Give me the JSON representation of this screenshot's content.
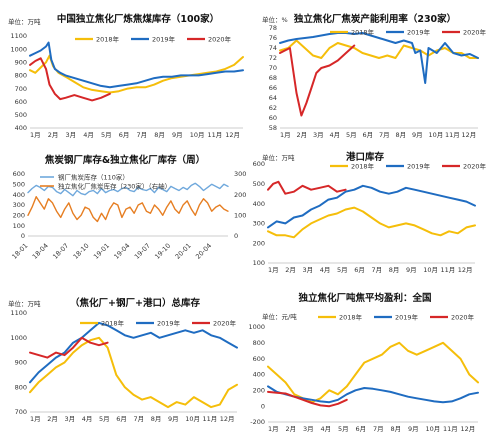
{
  "chart_data": [
    {
      "type": "line",
      "title": "中国独立焦化厂炼焦煤库存（100家）",
      "unit": "万吨",
      "ylim": [
        400,
        1100
      ],
      "yticks": [
        400,
        500,
        600,
        700,
        800,
        900,
        1000,
        1100
      ],
      "xticks": [
        "1月",
        "2月",
        "3月",
        "4月",
        "5月",
        "6月",
        "7月",
        "8月",
        "9月",
        "10月",
        "11月",
        "12月"
      ],
      "xrange": [
        1,
        13
      ],
      "legend_position": "top",
      "grid": false,
      "series": [
        {
          "name": "2018年",
          "color": "#F5BE0A",
          "x": [
            1,
            1.3,
            1.6,
            1.9,
            2.1,
            2.3,
            2.6,
            3,
            3.5,
            4,
            4.5,
            5,
            5.5,
            6,
            6.5,
            7,
            7.5,
            8,
            8.5,
            9,
            9.5,
            10,
            10.5,
            11,
            11.5,
            12,
            12.5,
            13
          ],
          "y": [
            840,
            820,
            860,
            900,
            950,
            870,
            820,
            790,
            750,
            710,
            690,
            680,
            670,
            680,
            700,
            710,
            710,
            730,
            760,
            780,
            790,
            800,
            810,
            820,
            830,
            850,
            880,
            940
          ]
        },
        {
          "name": "2019年",
          "color": "#1F6CC1",
          "x": [
            1,
            1.3,
            1.6,
            1.9,
            2.05,
            2.2,
            2.4,
            2.7,
            3,
            3.5,
            4,
            4.5,
            5,
            5.5,
            6,
            6.5,
            7,
            7.5,
            8,
            8.5,
            9,
            9.5,
            10,
            10.5,
            11,
            11.5,
            12,
            12.5,
            13
          ],
          "y": [
            950,
            970,
            990,
            1020,
            1050,
            920,
            850,
            820,
            800,
            780,
            760,
            740,
            720,
            710,
            720,
            730,
            740,
            760,
            780,
            790,
            790,
            800,
            800,
            800,
            810,
            820,
            830,
            830,
            840
          ]
        },
        {
          "name": "2020年",
          "color": "#D62728",
          "x": [
            1,
            1.3,
            1.6,
            1.9,
            2.1,
            2.4,
            2.7,
            3,
            3.5,
            4,
            4.5,
            5,
            5.5
          ],
          "y": [
            880,
            910,
            930,
            850,
            730,
            660,
            620,
            630,
            650,
            630,
            610,
            630,
            660
          ]
        }
      ]
    },
    {
      "type": "line",
      "title": "独立焦化厂焦炭产能利用率（230家）",
      "unit": "%",
      "ylim": [
        58,
        78
      ],
      "yticks": [
        58,
        60,
        62,
        64,
        66,
        68,
        70,
        72,
        74,
        76,
        78
      ],
      "xticks": [
        "1月",
        "2月",
        "3月",
        "4月",
        "5月",
        "6月",
        "7月",
        "8月",
        "9月",
        "10月",
        "11月",
        "12月"
      ],
      "xrange": [
        1,
        13
      ],
      "legend_position": "top",
      "grid": false,
      "series": [
        {
          "name": "2018年",
          "color": "#F5BE0A",
          "x": [
            1,
            1.5,
            2,
            2.5,
            3,
            3.5,
            4,
            4.5,
            5,
            5.5,
            6,
            6.5,
            7,
            7.5,
            8,
            8.5,
            9,
            9.5,
            10,
            10.5,
            11,
            11.5,
            12,
            12.5,
            13
          ],
          "y": [
            73.5,
            74,
            75.5,
            74,
            72.5,
            72,
            74,
            75,
            74.5,
            74,
            73,
            72.5,
            72,
            72.5,
            72,
            74.5,
            74,
            73.5,
            72.5,
            73.5,
            74,
            73,
            73,
            72,
            72
          ]
        },
        {
          "name": "2019年",
          "color": "#1F6CC1",
          "x": [
            1,
            1.5,
            2,
            2.5,
            3,
            3.5,
            4,
            4.5,
            5,
            5.5,
            6,
            6.5,
            7,
            7.5,
            8,
            8.5,
            9,
            9.2,
            9.5,
            9.8,
            10,
            10.5,
            11,
            11.5,
            12,
            12.5,
            13
          ],
          "y": [
            75,
            75.5,
            75.8,
            76,
            76.2,
            76.5,
            76.8,
            77,
            77,
            76.8,
            77,
            76.5,
            76,
            75.5,
            75,
            75.5,
            75,
            73,
            73.5,
            67,
            74,
            73,
            75,
            73,
            72.5,
            72.8,
            72
          ]
        },
        {
          "name": "2020年",
          "color": "#D62728",
          "x": [
            1,
            1.3,
            1.6,
            2,
            2.3,
            2.6,
            2.9,
            3.2,
            3.5,
            4,
            4.5,
            5,
            5.5
          ],
          "y": [
            73,
            73.5,
            74,
            65,
            60.5,
            63,
            66,
            69,
            70,
            70.5,
            71.5,
            73,
            74.5
          ]
        }
      ]
    },
    {
      "type": "line",
      "title": "焦炭钢厂库存&独立焦化厂库存（周）",
      "unit": "",
      "ylim": [
        0,
        600
      ],
      "yticks": [
        0,
        100,
        200,
        300,
        400,
        500,
        600
      ],
      "y2lim": [
        0,
        300
      ],
      "y2ticks": [
        0,
        100,
        200,
        300
      ],
      "xticks": [
        "18-01",
        "18-04",
        "18-07",
        "18-10",
        "19-01",
        "19-04",
        "19-07",
        "19-10",
        "20-01",
        "20-04"
      ],
      "xrange": [
        0,
        9.8
      ],
      "legend_position": "top",
      "grid": false,
      "series": [
        {
          "name": "钢厂焦炭库存（110家）",
          "color": "#6FA8DC",
          "axis": "left",
          "x": [
            0,
            0.2,
            0.4,
            0.6,
            0.8,
            1,
            1.2,
            1.4,
            1.6,
            1.8,
            2,
            2.2,
            2.4,
            2.6,
            2.8,
            3,
            3.2,
            3.4,
            3.6,
            3.8,
            4,
            4.2,
            4.4,
            4.6,
            4.8,
            5,
            5.2,
            5.4,
            5.6,
            5.8,
            6,
            6.2,
            6.4,
            6.6,
            6.8,
            7,
            7.2,
            7.4,
            7.6,
            7.8,
            8,
            8.2,
            8.4,
            8.6,
            8.8,
            9,
            9.2,
            9.4,
            9.6,
            9.8
          ],
          "y": [
            420,
            460,
            490,
            470,
            440,
            480,
            470,
            430,
            410,
            450,
            420,
            390,
            440,
            410,
            400,
            430,
            440,
            410,
            460,
            420,
            440,
            450,
            430,
            460,
            470,
            440,
            430,
            470,
            450,
            440,
            460,
            420,
            470,
            450,
            430,
            480,
            460,
            440,
            470,
            450,
            490,
            510,
            480,
            440,
            470,
            500,
            480,
            460,
            500,
            480
          ]
        },
        {
          "name": "独立焦化厂焦炭库存（230家）（右轴）",
          "color": "#E67E22",
          "axis": "right",
          "x": [
            0,
            0.2,
            0.4,
            0.6,
            0.8,
            1,
            1.2,
            1.4,
            1.6,
            1.8,
            2,
            2.2,
            2.4,
            2.6,
            2.8,
            3,
            3.2,
            3.4,
            3.6,
            3.8,
            4,
            4.2,
            4.4,
            4.6,
            4.8,
            5,
            5.2,
            5.4,
            5.6,
            5.8,
            6,
            6.2,
            6.4,
            6.6,
            6.8,
            7,
            7.2,
            7.4,
            7.6,
            7.8,
            8,
            8.2,
            8.4,
            8.6,
            8.8,
            9,
            9.2,
            9.4,
            9.6,
            9.8
          ],
          "y": [
            100,
            140,
            190,
            160,
            130,
            180,
            160,
            120,
            90,
            130,
            160,
            110,
            80,
            100,
            140,
            130,
            90,
            70,
            110,
            80,
            130,
            160,
            150,
            90,
            130,
            140,
            110,
            150,
            160,
            120,
            110,
            150,
            130,
            100,
            140,
            170,
            130,
            110,
            150,
            170,
            130,
            100,
            150,
            180,
            160,
            120,
            140,
            150,
            130,
            120
          ]
        }
      ]
    },
    {
      "type": "line",
      "title": "港口库存",
      "unit": "万吨",
      "ylim": [
        100,
        600
      ],
      "yticks": [
        100,
        200,
        300,
        400,
        500,
        600
      ],
      "xticks": [
        "1月",
        "2月",
        "3月",
        "4月",
        "5月",
        "6月",
        "7月",
        "8月",
        "9月",
        "10月",
        "11月",
        "12月"
      ],
      "xrange": [
        1,
        13
      ],
      "legend_position": "top",
      "grid": false,
      "series": [
        {
          "name": "2018年",
          "color": "#F5BE0A",
          "x": [
            1,
            1.5,
            2,
            2.5,
            3,
            3.5,
            4,
            4.5,
            5,
            5.5,
            6,
            6.5,
            7,
            7.5,
            8,
            8.5,
            9,
            9.5,
            10,
            10.5,
            11,
            11.5,
            12,
            12.5,
            13
          ],
          "y": [
            260,
            240,
            240,
            230,
            270,
            300,
            320,
            340,
            350,
            370,
            380,
            360,
            330,
            300,
            280,
            290,
            300,
            290,
            270,
            250,
            240,
            260,
            250,
            280,
            290
          ]
        },
        {
          "name": "2019年",
          "color": "#1F6CC1",
          "x": [
            1,
            1.5,
            2,
            2.5,
            3,
            3.5,
            4,
            4.5,
            5,
            5.5,
            6,
            6.5,
            7,
            7.5,
            8,
            8.5,
            9,
            9.5,
            10,
            10.5,
            11,
            11.5,
            12,
            12.5,
            13
          ],
          "y": [
            280,
            310,
            300,
            330,
            340,
            370,
            390,
            420,
            430,
            460,
            470,
            490,
            480,
            460,
            450,
            460,
            480,
            470,
            460,
            450,
            440,
            430,
            420,
            410,
            390
          ]
        },
        {
          "name": "2020年",
          "color": "#D62728",
          "x": [
            1,
            1.3,
            1.6,
            2,
            2.5,
            3,
            3.5,
            4,
            4.5,
            5,
            5.5
          ],
          "y": [
            470,
            500,
            510,
            450,
            460,
            490,
            470,
            480,
            490,
            460,
            470
          ]
        }
      ]
    },
    {
      "type": "line",
      "title": "（焦化厂+钢厂+港口）总库存",
      "unit": "万吨",
      "ylim": [
        700,
        1100
      ],
      "yticks": [
        700,
        800,
        900,
        1000,
        1100
      ],
      "xticks": [
        "1月",
        "2月",
        "3月",
        "4月",
        "5月",
        "6月",
        "7月",
        "8月",
        "9月",
        "10月",
        "11月",
        "12月"
      ],
      "xrange": [
        1,
        13
      ],
      "legend_position": "top",
      "grid": false,
      "series": [
        {
          "name": "2018年",
          "color": "#F5BE0A",
          "x": [
            1,
            1.5,
            2,
            2.5,
            3,
            3.5,
            4,
            4.5,
            5,
            5.5,
            6,
            6.5,
            7,
            7.5,
            8,
            8.5,
            9,
            9.5,
            10,
            10.5,
            11,
            11.5,
            12,
            12.5,
            13
          ],
          "y": [
            780,
            820,
            850,
            880,
            900,
            940,
            970,
            990,
            1000,
            960,
            850,
            800,
            770,
            750,
            760,
            740,
            720,
            740,
            730,
            760,
            740,
            720,
            730,
            790,
            810
          ]
        },
        {
          "name": "2019年",
          "color": "#1F6CC1",
          "x": [
            1,
            1.5,
            2,
            2.5,
            3,
            3.5,
            4,
            4.5,
            5,
            5.5,
            6,
            6.5,
            7,
            7.5,
            8,
            8.5,
            9,
            9.5,
            10,
            10.5,
            11,
            11.5,
            12,
            12.5,
            13
          ],
          "y": [
            820,
            860,
            890,
            920,
            940,
            980,
            1000,
            1030,
            1060,
            1050,
            1030,
            1010,
            1000,
            1010,
            1020,
            1000,
            1010,
            1020,
            1030,
            1020,
            1030,
            1010,
            1000,
            980,
            960
          ]
        },
        {
          "name": "2020年",
          "color": "#D62728",
          "x": [
            1,
            1.5,
            2,
            2.5,
            3,
            3.5,
            4,
            4.5,
            5,
            5.5
          ],
          "y": [
            940,
            930,
            920,
            940,
            930,
            960,
            1000,
            980,
            970,
            980
          ]
        }
      ]
    },
    {
      "type": "line",
      "title": "独立焦化厂吨焦平均盈利：全国",
      "unit": "元/吨",
      "ylim": [
        -200,
        1000
      ],
      "yticks": [
        -200,
        0,
        200,
        400,
        600,
        800,
        1000
      ],
      "xticks": [
        "1月",
        "2月",
        "3月",
        "4月",
        "5月",
        "6月",
        "7月",
        "8月",
        "9月",
        "10月",
        "11月",
        "12月"
      ],
      "xrange": [
        1,
        13
      ],
      "legend_position": "top",
      "grid": false,
      "series": [
        {
          "name": "2018年",
          "color": "#F5BE0A",
          "x": [
            1,
            1.5,
            2,
            2.5,
            3,
            3.5,
            4,
            4.5,
            5,
            5.5,
            6,
            6.5,
            7,
            7.5,
            8,
            8.5,
            9,
            9.5,
            10,
            10.5,
            11,
            11.5,
            12,
            12.5,
            13
          ],
          "y": [
            500,
            400,
            300,
            150,
            100,
            50,
            100,
            200,
            150,
            250,
            400,
            550,
            600,
            650,
            750,
            800,
            700,
            650,
            700,
            750,
            800,
            700,
            600,
            400,
            300
          ]
        },
        {
          "name": "2019年",
          "color": "#1F6CC1",
          "x": [
            1,
            1.5,
            2,
            2.5,
            3,
            3.5,
            4,
            4.5,
            5,
            5.5,
            6,
            6.5,
            7,
            7.5,
            8,
            8.5,
            9,
            9.5,
            10,
            10.5,
            11,
            11.5,
            12,
            12.5,
            13
          ],
          "y": [
            250,
            180,
            150,
            120,
            100,
            80,
            60,
            50,
            80,
            150,
            200,
            230,
            220,
            200,
            180,
            150,
            120,
            100,
            80,
            60,
            50,
            60,
            100,
            150,
            170
          ]
        },
        {
          "name": "2020年",
          "color": "#D62728",
          "x": [
            1,
            1.5,
            2,
            2.5,
            3,
            3.5,
            4,
            4.5,
            5,
            5.5
          ],
          "y": [
            180,
            170,
            160,
            120,
            80,
            40,
            10,
            0,
            30,
            80
          ]
        }
      ]
    }
  ]
}
